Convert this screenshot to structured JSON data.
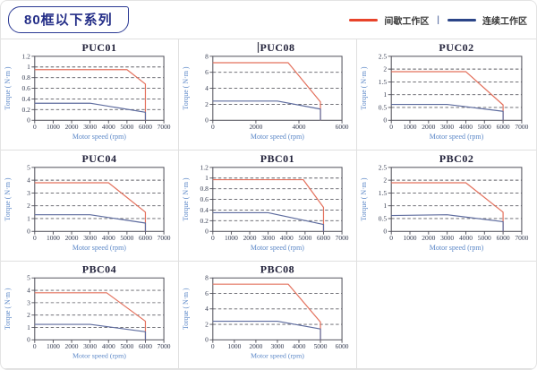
{
  "header": {
    "badge": "80框以下系列",
    "legend": {
      "items": [
        {
          "label": "间歇工作区",
          "color": "#e8432a"
        },
        {
          "label": "连续工作区",
          "color": "#2b4588"
        }
      ],
      "separator": "|"
    }
  },
  "chart_data": [
    {
      "type": "line",
      "title": "PUC01",
      "xlabel": "Motor speed (rpm)",
      "ylabel": "Torque ( N·m )",
      "xlim": [
        0,
        7000
      ],
      "ylim": [
        0,
        1.2
      ],
      "xticks": [
        0,
        1000,
        2000,
        3000,
        4000,
        5000,
        6000,
        7000
      ],
      "yticks": [
        0,
        0.2,
        0.4,
        0.6,
        0.8,
        1,
        1.2
      ],
      "grid": true,
      "series": [
        {
          "name": "间歇工作区",
          "color": "#e3705c",
          "points": [
            [
              0,
              0.95
            ],
            [
              5000,
              0.95
            ],
            [
              6000,
              0.68
            ],
            [
              6000,
              0
            ]
          ]
        },
        {
          "name": "连续工作区",
          "color": "#5d6b9e",
          "points": [
            [
              0,
              0.32
            ],
            [
              3000,
              0.32
            ],
            [
              6000,
              0.15
            ],
            [
              6000,
              0
            ]
          ]
        }
      ]
    },
    {
      "type": "line",
      "title": "PUC08",
      "cursor": true,
      "xlabel": "Motor speed (rpm)",
      "ylabel": "Torque ( N·m )",
      "xlim": [
        0,
        6000
      ],
      "ylim": [
        0,
        8
      ],
      "xticks": [
        0,
        2000,
        4000,
        6000
      ],
      "yticks": [
        0,
        2,
        4,
        6,
        8
      ],
      "grid": true,
      "series": [
        {
          "name": "间歇工作区",
          "color": "#e3705c",
          "points": [
            [
              0,
              7.2
            ],
            [
              3500,
              7.2
            ],
            [
              5000,
              2.3
            ],
            [
              5000,
              0
            ]
          ]
        },
        {
          "name": "连续工作区",
          "color": "#5d6b9e",
          "points": [
            [
              0,
              2.4
            ],
            [
              3000,
              2.4
            ],
            [
              5000,
              1.4
            ],
            [
              5000,
              0
            ]
          ]
        }
      ]
    },
    {
      "type": "line",
      "title": "PUC02",
      "xlabel": "Motor speed (rpm)",
      "ylabel": "Torque ( N·m )",
      "xlim": [
        0,
        7000
      ],
      "ylim": [
        0,
        2.5
      ],
      "xticks": [
        0,
        1000,
        2000,
        3000,
        4000,
        5000,
        6000,
        7000
      ],
      "yticks": [
        0,
        0.5,
        1,
        1.5,
        2,
        2.5
      ],
      "grid": true,
      "series": [
        {
          "name": "间歇工作区",
          "color": "#e3705c",
          "points": [
            [
              0,
              1.9
            ],
            [
              4000,
              1.9
            ],
            [
              6000,
              0.6
            ],
            [
              6000,
              0
            ]
          ]
        },
        {
          "name": "连续工作区",
          "color": "#5d6b9e",
          "points": [
            [
              0,
              0.62
            ],
            [
              3000,
              0.62
            ],
            [
              6000,
              0.35
            ],
            [
              6000,
              0
            ]
          ]
        }
      ]
    },
    {
      "type": "line",
      "title": "PUC04",
      "xlabel": "Motor speed (rpm)",
      "ylabel": "Torque ( N·m )",
      "xlim": [
        0,
        7000
      ],
      "ylim": [
        0,
        5
      ],
      "xticks": [
        0,
        1000,
        2000,
        3000,
        4000,
        5000,
        6000,
        7000
      ],
      "yticks": [
        0,
        1,
        2,
        3,
        4,
        5
      ],
      "grid": true,
      "series": [
        {
          "name": "间歇工作区",
          "color": "#e3705c",
          "points": [
            [
              0,
              3.8
            ],
            [
              4000,
              3.8
            ],
            [
              6000,
              1.5
            ],
            [
              6000,
              0
            ]
          ]
        },
        {
          "name": "连续工作区",
          "color": "#5d6b9e",
          "points": [
            [
              0,
              1.3
            ],
            [
              3000,
              1.3
            ],
            [
              6000,
              0.65
            ],
            [
              6000,
              0
            ]
          ]
        }
      ]
    },
    {
      "type": "line",
      "title": "PBC01",
      "xlabel": "Motor speed (rpm)",
      "ylabel": "Torque ( N·m )",
      "xlim": [
        0,
        7000
      ],
      "ylim": [
        0,
        1.2
      ],
      "xticks": [
        0,
        1000,
        2000,
        3000,
        4000,
        5000,
        6000,
        7000
      ],
      "yticks": [
        0,
        0.2,
        0.4,
        0.6,
        0.8,
        1,
        1.2
      ],
      "grid": true,
      "series": [
        {
          "name": "间歇工作区",
          "color": "#e3705c",
          "points": [
            [
              0,
              0.97
            ],
            [
              4900,
              0.97
            ],
            [
              6000,
              0.45
            ],
            [
              6000,
              0
            ]
          ]
        },
        {
          "name": "连续工作区",
          "color": "#5d6b9e",
          "points": [
            [
              0,
              0.35
            ],
            [
              3000,
              0.35
            ],
            [
              6000,
              0.13
            ],
            [
              6000,
              0
            ]
          ]
        }
      ]
    },
    {
      "type": "line",
      "title": "PBC02",
      "xlabel": "Motor speed (rpm)",
      "ylabel": "Torque ( N·m )",
      "xlim": [
        0,
        7000
      ],
      "ylim": [
        0,
        2.5
      ],
      "xticks": [
        0,
        1000,
        2000,
        3000,
        4000,
        5000,
        6000,
        7000
      ],
      "yticks": [
        0,
        0.5,
        1,
        1.5,
        2,
        2.5
      ],
      "grid": true,
      "series": [
        {
          "name": "间歇工作区",
          "color": "#e3705c",
          "points": [
            [
              0,
              1.9
            ],
            [
              4000,
              1.9
            ],
            [
              6000,
              0.75
            ],
            [
              6000,
              0
            ]
          ]
        },
        {
          "name": "连续工作区",
          "color": "#5d6b9e",
          "points": [
            [
              0,
              0.62
            ],
            [
              3000,
              0.65
            ],
            [
              6000,
              0.38
            ],
            [
              6000,
              0
            ]
          ]
        }
      ]
    },
    {
      "type": "line",
      "title": "PBC04",
      "xlabel": "Motor speed (rpm)",
      "ylabel": "Torque ( N·m )",
      "xlim": [
        0,
        7000
      ],
      "ylim": [
        0,
        5
      ],
      "xticks": [
        0,
        1000,
        2000,
        3000,
        4000,
        5000,
        6000,
        7000
      ],
      "yticks": [
        0,
        1,
        2,
        3,
        4,
        5
      ],
      "grid": true,
      "series": [
        {
          "name": "间歇工作区",
          "color": "#e3705c",
          "points": [
            [
              0,
              3.8
            ],
            [
              3900,
              3.8
            ],
            [
              6000,
              1.5
            ],
            [
              6000,
              0
            ]
          ]
        },
        {
          "name": "连续工作区",
          "color": "#5d6b9e",
          "points": [
            [
              0,
              1.25
            ],
            [
              3000,
              1.25
            ],
            [
              6000,
              0.65
            ],
            [
              6000,
              0
            ]
          ]
        }
      ]
    },
    {
      "type": "line",
      "title": "PBC08",
      "xlabel": "Motor speed (rpm)",
      "ylabel": "Torque ( N·m )",
      "xlim": [
        0,
        6000
      ],
      "ylim": [
        0,
        8
      ],
      "xticks": [
        0,
        1000,
        2000,
        3000,
        4000,
        5000,
        6000
      ],
      "yticks": [
        0,
        2,
        4,
        6,
        8
      ],
      "grid": true,
      "series": [
        {
          "name": "间歇工作区",
          "color": "#e3705c",
          "points": [
            [
              0,
              7.2
            ],
            [
              3500,
              7.2
            ],
            [
              5000,
              2.3
            ],
            [
              5000,
              0
            ]
          ]
        },
        {
          "name": "连续工作区",
          "color": "#5d6b9e",
          "points": [
            [
              0,
              2.4
            ],
            [
              3000,
              2.4
            ],
            [
              5000,
              1.4
            ],
            [
              5000,
              0
            ]
          ]
        }
      ]
    }
  ]
}
